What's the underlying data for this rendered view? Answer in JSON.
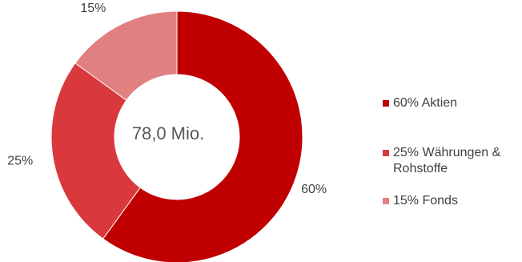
{
  "chart_data": {
    "type": "pie",
    "variant": "donut",
    "center_label": "78,0 Mio.",
    "slices": [
      {
        "label": "60%",
        "legend": "60% Aktien",
        "value": 60,
        "color": "#C00000"
      },
      {
        "label": "25%",
        "legend": "25% Währungen &\nRohstoffe",
        "value": 25,
        "color": "#D9383D"
      },
      {
        "label": "15%",
        "legend": "15% Fonds",
        "value": 15,
        "color": "#E08080"
      }
    ],
    "legend_position": "right"
  }
}
